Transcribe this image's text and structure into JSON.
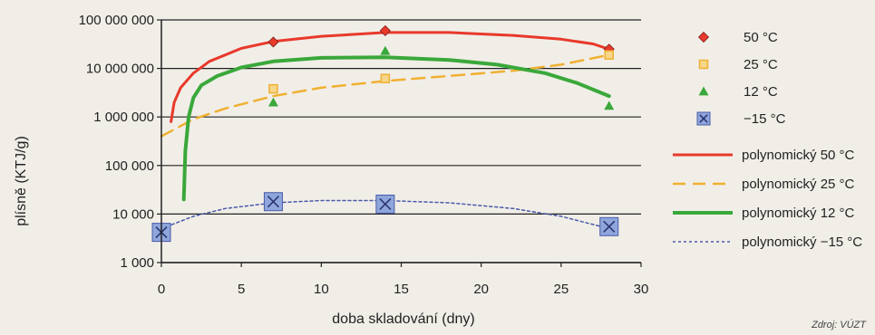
{
  "colors": {
    "s50": "#e8392b",
    "s25": "#f0b030",
    "s12": "#3aa83a",
    "sm15": "#4a5aa8",
    "grid": "#222222"
  },
  "source_text": "Zdroj: VÚZT",
  "chart_data": {
    "type": "scatter",
    "xlabel": "doba skladování (dny)",
    "ylabel": "plísně (KTJ/g)",
    "xlim": [
      0,
      30
    ],
    "xticks": [
      0,
      5,
      10,
      15,
      20,
      25,
      30
    ],
    "ylim": [
      1000,
      100000000
    ],
    "yscale": "log",
    "yticks": [
      {
        "value": 1000,
        "label": "1 000"
      },
      {
        "value": 10000,
        "label": "10 000"
      },
      {
        "value": 100000,
        "label": "100 000"
      },
      {
        "value": 1000000,
        "label": "1 000 000"
      },
      {
        "value": 10000000,
        "label": "10 000 000"
      },
      {
        "value": 100000000,
        "label": "100 000 000"
      }
    ],
    "grid": "horizontal",
    "legend_position": "right",
    "series": [
      {
        "name": "50 °C",
        "marker": "diamond",
        "color_key": "s50",
        "x": [
          7,
          14,
          28
        ],
        "y": [
          35000000,
          60000000,
          25000000
        ]
      },
      {
        "name": "25 °C",
        "marker": "square",
        "color_key": "s25",
        "x": [
          7,
          14,
          28
        ],
        "y": [
          3800000,
          6200000,
          19000000
        ]
      },
      {
        "name": "12 °C",
        "marker": "triangle",
        "color_key": "s12",
        "x": [
          7,
          14,
          28
        ],
        "y": [
          2000000,
          23000000,
          1700000
        ]
      },
      {
        "name": "−15 °C",
        "marker": "xbox",
        "color_key": "sm15",
        "x": [
          0,
          7,
          14,
          28
        ],
        "y": [
          4200,
          18000,
          16000,
          5500
        ]
      }
    ],
    "trendlines": [
      {
        "name": "polynomický 50 °C",
        "color_key": "s50",
        "style": "solid",
        "width": 3,
        "x": [
          0.6,
          0.8,
          1.2,
          2,
          3,
          5,
          7,
          10,
          14,
          18,
          22,
          25,
          27,
          28
        ],
        "y": [
          800000,
          2000000,
          4000000,
          8000000,
          14000000,
          26000000,
          36000000,
          46000000,
          55000000,
          55000000,
          48000000,
          40000000,
          32000000,
          25000000
        ]
      },
      {
        "name": "polynomický 25 °C",
        "color_key": "s25",
        "style": "dashed",
        "width": 2.5,
        "x": [
          0,
          2,
          4,
          7,
          10,
          14,
          18,
          22,
          25,
          28
        ],
        "y": [
          400000,
          900000,
          1500000,
          2700000,
          4000000,
          5500000,
          7000000,
          9000000,
          12000000,
          19000000
        ]
      },
      {
        "name": "polynomický 12 °C",
        "color_key": "s12",
        "style": "solid",
        "width": 4,
        "x": [
          1.4,
          1.5,
          1.7,
          2,
          2.5,
          3.5,
          5,
          7,
          10,
          14,
          18,
          21,
          24,
          26,
          28
        ],
        "y": [
          20000,
          200000,
          1000000,
          2500000,
          4500000,
          7000000,
          10500000,
          14000000,
          16500000,
          17000000,
          15000000,
          12000000,
          8000000,
          5000000,
          2700000
        ]
      },
      {
        "name": "polynomický −15 °C",
        "color_key": "sm15",
        "style": "dotted",
        "width": 1.5,
        "x": [
          0,
          2,
          4,
          7,
          10,
          14,
          18,
          22,
          25,
          28
        ],
        "y": [
          5000,
          9000,
          13000,
          17000,
          19000,
          19000,
          17000,
          13000,
          9000,
          5000
        ]
      }
    ]
  }
}
